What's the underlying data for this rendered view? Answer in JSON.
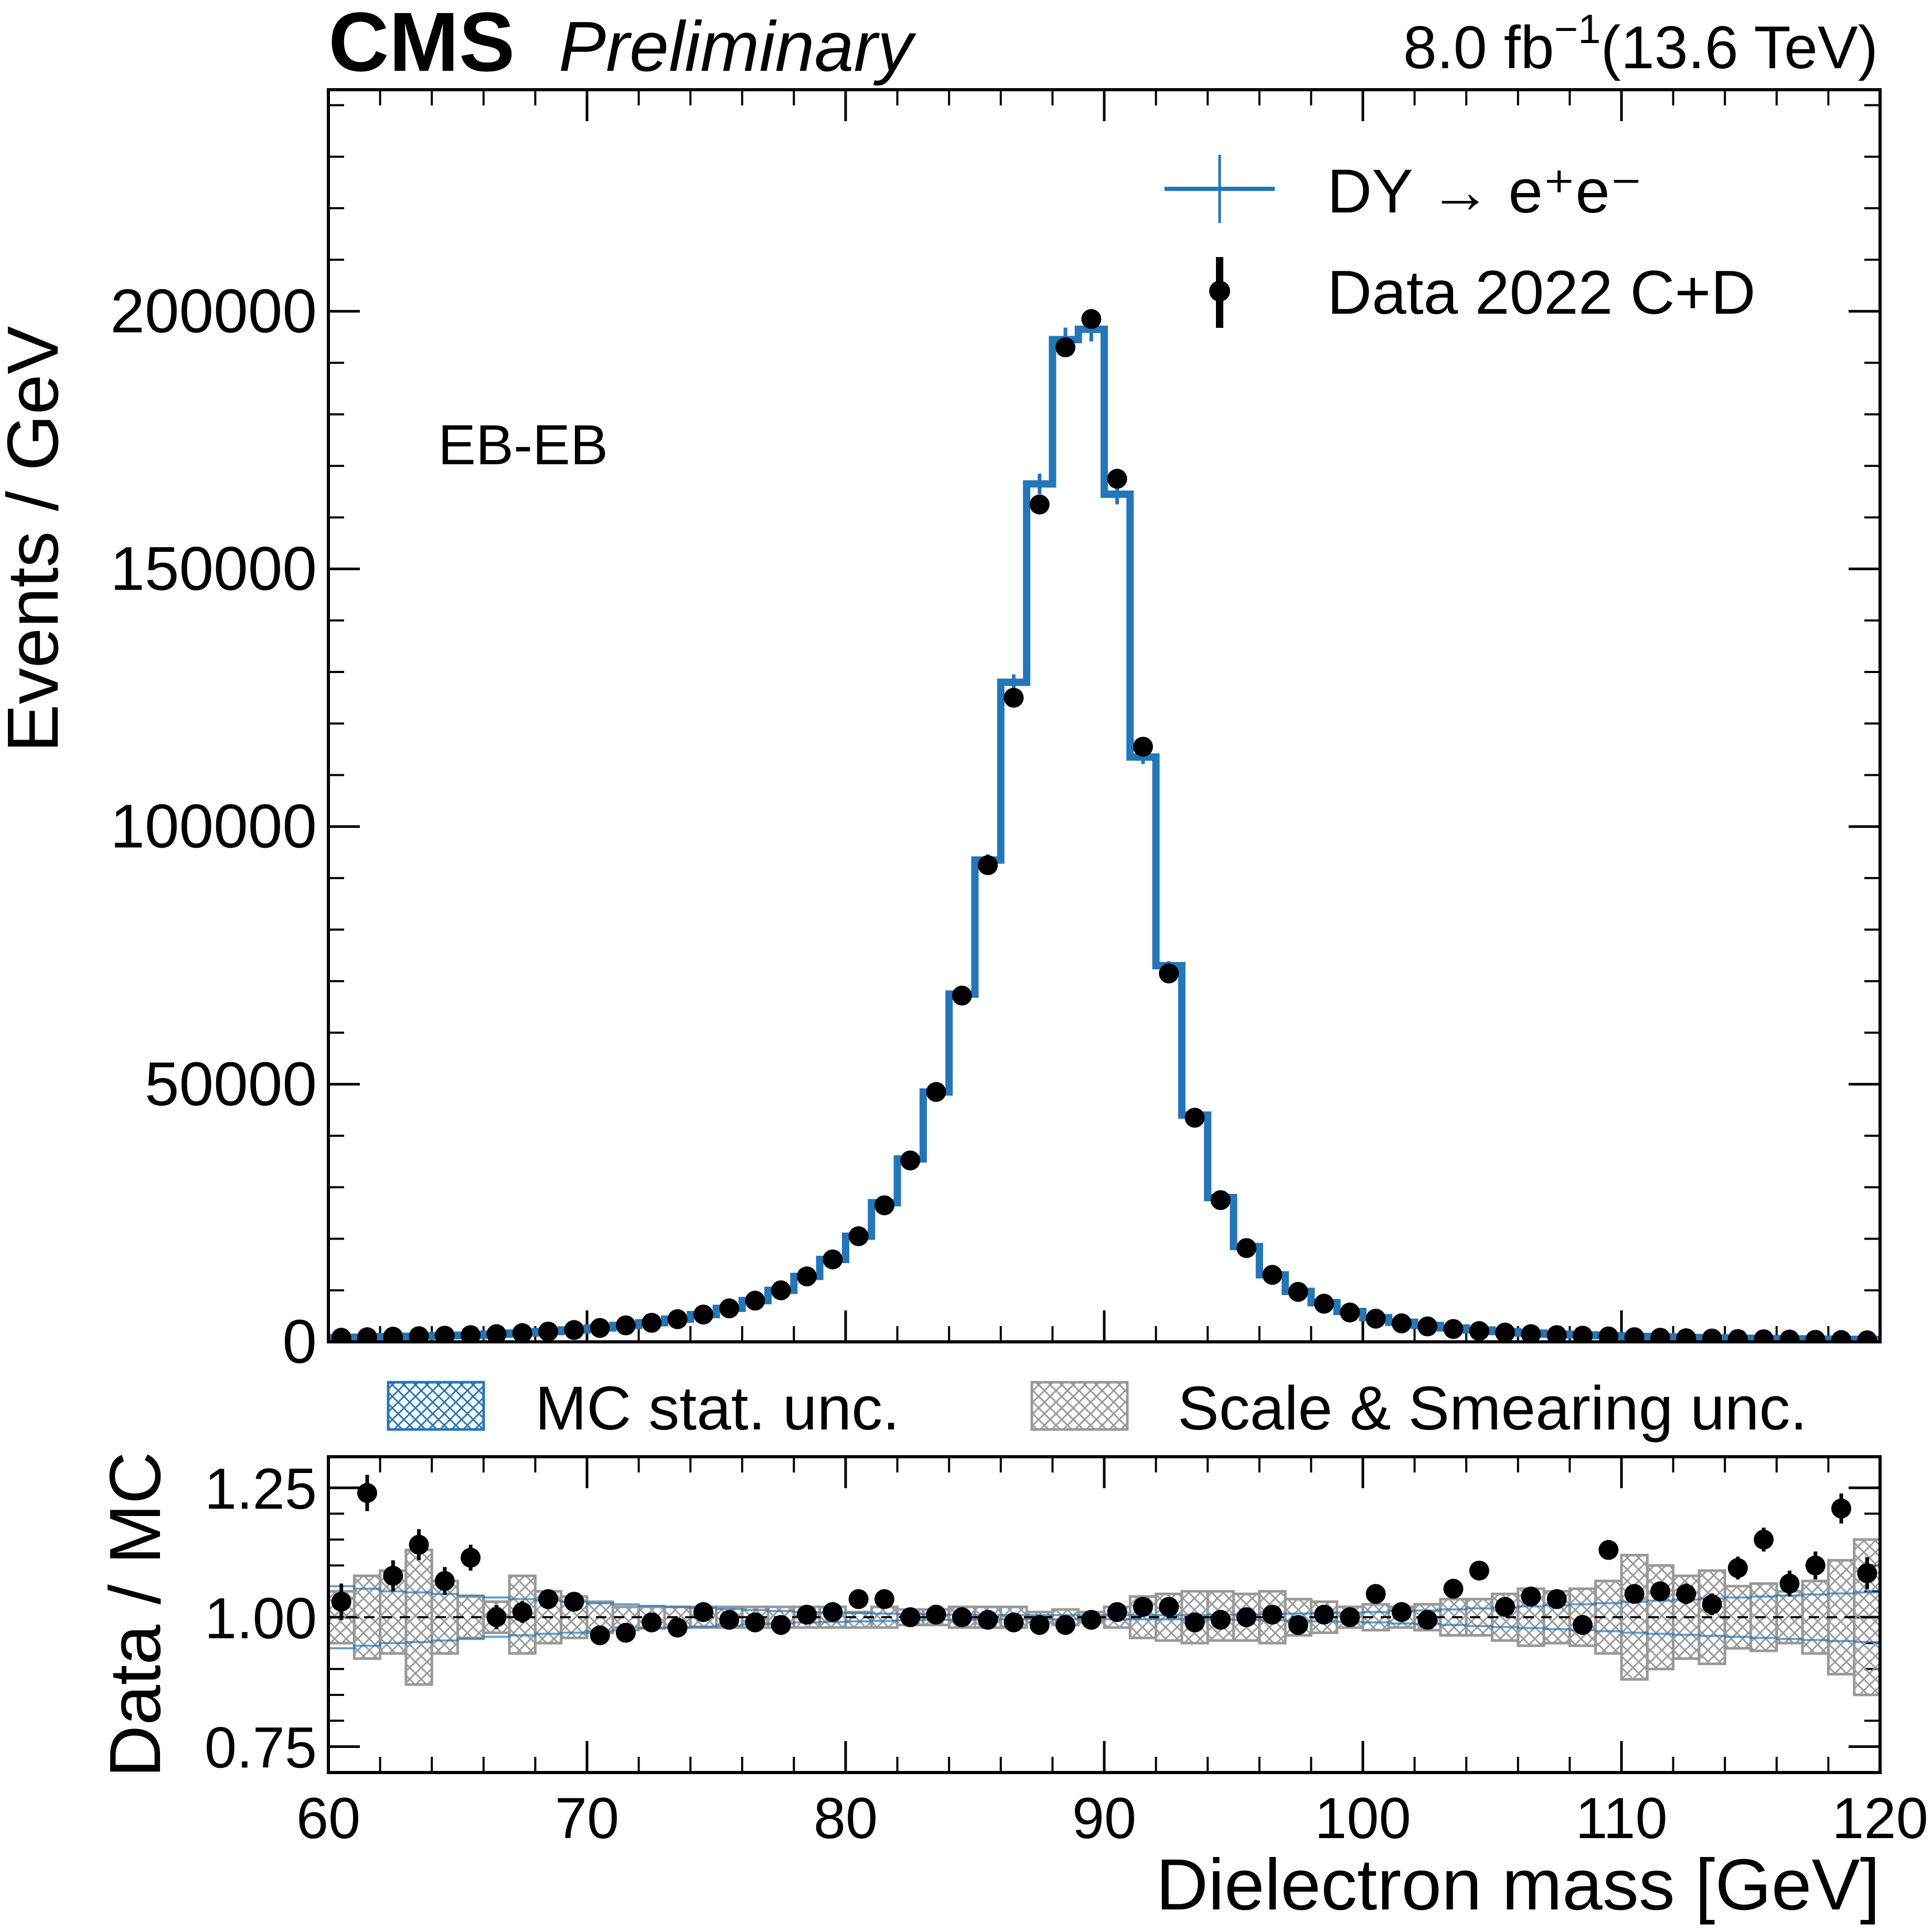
{
  "header": {
    "experiment": "CMS",
    "status": "Preliminary",
    "lumi": "8.0 fb",
    "lumi_exp": "−1",
    "energy": "(13.6 TeV)"
  },
  "colors": {
    "mc": "#2376b7",
    "data": "#000000",
    "syst": "#999999",
    "frame": "#000000"
  },
  "chart_data": [
    {
      "type": "line",
      "panel": "main",
      "region_label": "EB-EB",
      "xlabel": "",
      "ylabel": "Events / GeV",
      "xlim": [
        60,
        120
      ],
      "ylim": [
        0,
        243000
      ],
      "yticks": [
        0,
        50000,
        100000,
        150000,
        200000
      ],
      "ytick_labels": [
        "0",
        "50000",
        "100000",
        "150000",
        "200000"
      ],
      "bin_edges": [
        60,
        61,
        62,
        63,
        64,
        65,
        66,
        67,
        68,
        69,
        70,
        71,
        72,
        73,
        74,
        75,
        76,
        77,
        78,
        79,
        80,
        81,
        82,
        83,
        84,
        85,
        86,
        87,
        88,
        89,
        90,
        91,
        92,
        93,
        94,
        95,
        96,
        97,
        98,
        99,
        100,
        101,
        102,
        103,
        104,
        105,
        106,
        107,
        108,
        109,
        110,
        111,
        112,
        113,
        114,
        115,
        116,
        117,
        118,
        119,
        120
      ],
      "legend": [
        {
          "label": "DY → e⁺e⁻",
          "style": "step"
        },
        {
          "label": "Data 2022 C+D",
          "style": "errorbar"
        }
      ],
      "series": [
        {
          "name": "DY → e⁺e⁻",
          "style": "step",
          "values": [
            800,
            900,
            1000,
            1100,
            1200,
            1300,
            1500,
            1700,
            2000,
            2300,
            2700,
            3200,
            3700,
            4400,
            5300,
            6500,
            8000,
            10000,
            12700,
            16000,
            20500,
            27000,
            35500,
            48500,
            67500,
            93500,
            128000,
            166500,
            194500,
            196500,
            164500,
            113500,
            73000,
            44000,
            28000,
            18500,
            13000,
            9800,
            7600,
            5900,
            4700,
            3800,
            3200,
            2700,
            2300,
            2000,
            1700,
            1500,
            1350,
            1200,
            1050,
            950,
            850,
            780,
            700,
            640,
            580,
            540,
            500,
            470
          ]
        },
        {
          "name": "Data 2022 C+D",
          "style": "errorbar",
          "values": [
            800,
            900,
            1000,
            1100,
            1200,
            1300,
            1500,
            1700,
            2000,
            2300,
            2700,
            3200,
            3700,
            4400,
            5300,
            6500,
            8000,
            10000,
            12700,
            16000,
            20500,
            26500,
            35200,
            48500,
            67200,
            92500,
            125000,
            162500,
            193000,
            198500,
            167500,
            115500,
            71500,
            43500,
            27500,
            18200,
            13000,
            9700,
            7400,
            5700,
            4500,
            3600,
            3000,
            2500,
            2100,
            1800,
            1500,
            1300,
            1200,
            1050,
            900,
            800,
            700,
            650,
            550,
            500,
            450,
            400,
            350,
            300
          ],
          "errors": [
            40,
            40,
            40,
            40,
            40,
            40,
            40,
            40,
            40,
            40,
            40,
            40,
            40,
            40,
            40,
            40,
            40,
            40,
            40,
            40,
            40,
            40,
            40,
            40,
            40,
            40,
            40,
            40,
            40,
            40,
            40,
            40,
            40,
            40,
            40,
            40,
            40,
            40,
            40,
            40,
            40,
            40,
            40,
            40,
            40,
            40,
            40,
            40,
            40,
            40,
            40,
            40,
            40,
            40,
            40,
            40,
            40,
            40,
            40,
            40
          ]
        }
      ]
    },
    {
      "type": "scatter",
      "panel": "ratio",
      "xlabel": "Dielectron mass [GeV]",
      "ylabel": "Data / MC",
      "xlim": [
        60,
        120
      ],
      "ylim": [
        0.7,
        1.31
      ],
      "yticks": [
        0.75,
        1.0,
        1.25
      ],
      "ytick_labels": [
        "0.75",
        "1.00",
        "1.25"
      ],
      "xticks": [
        60,
        70,
        80,
        90,
        100,
        110,
        120
      ],
      "xtick_labels": [
        "60",
        "70",
        "80",
        "90",
        "100",
        "110",
        "120"
      ],
      "legend": [
        {
          "label": "MC stat. unc.",
          "style": "hatch-blue"
        },
        {
          "label": "Scale & Smearing unc.",
          "style": "hatch-grey"
        }
      ],
      "reference_line": 1.0,
      "x": [
        60.5,
        61.5,
        62.5,
        63.5,
        64.5,
        65.5,
        66.5,
        67.5,
        68.5,
        69.5,
        70.5,
        71.5,
        72.5,
        73.5,
        74.5,
        75.5,
        76.5,
        77.5,
        78.5,
        79.5,
        80.5,
        81.5,
        82.5,
        83.5,
        84.5,
        85.5,
        86.5,
        87.5,
        88.5,
        89.5,
        90.5,
        91.5,
        92.5,
        93.5,
        94.5,
        95.5,
        96.5,
        97.5,
        98.5,
        99.5,
        100.5,
        101.5,
        102.5,
        103.5,
        104.5,
        105.5,
        106.5,
        107.5,
        108.5,
        109.5,
        110.5,
        111.5,
        112.5,
        113.5,
        114.5,
        115.5,
        116.5,
        117.5,
        118.5,
        119.5
      ],
      "series": [
        {
          "name": "Data / MC",
          "style": "errorbar",
          "values": [
            1.03,
            1.24,
            1.08,
            1.14,
            1.07,
            1.115,
            1.0,
            1.01,
            1.035,
            1.03,
            0.965,
            0.97,
            0.99,
            0.98,
            1.01,
            0.995,
            0.99,
            0.985,
            1.005,
            1.01,
            1.035,
            1.035,
            1.0,
            1.005,
            1.0,
            0.995,
            0.99,
            0.985,
            0.985,
            0.995,
            1.01,
            1.02,
            1.02,
            0.99,
            0.995,
            1.0,
            1.005,
            0.985,
            1.005,
            1.0,
            1.045,
            1.01,
            0.995,
            1.055,
            1.09,
            1.02,
            1.04,
            1.035,
            0.985,
            1.13,
            1.045,
            1.05,
            1.045,
            1.025,
            1.095,
            1.15,
            1.065,
            1.1,
            1.21,
            1.085
          ],
          "errors": [
            0.035,
            0.035,
            0.03,
            0.03,
            0.027,
            0.025,
            0.023,
            0.021,
            0.019,
            0.017,
            0.015,
            0.014,
            0.012,
            0.011,
            0.01,
            0.009,
            0.008,
            0.007,
            0.007,
            0.006,
            0.006,
            0.006,
            0.006,
            0.006,
            0.006,
            0.006,
            0.006,
            0.006,
            0.006,
            0.006,
            0.006,
            0.006,
            0.006,
            0.006,
            0.006,
            0.006,
            0.006,
            0.006,
            0.006,
            0.006,
            0.007,
            0.008,
            0.009,
            0.01,
            0.011,
            0.012,
            0.013,
            0.014,
            0.015,
            0.017,
            0.018,
            0.019,
            0.02,
            0.021,
            0.022,
            0.023,
            0.025,
            0.027,
            0.029,
            0.031
          ]
        },
        {
          "name": "MC stat. unc.",
          "style": "band",
          "half_width": [
            0.06,
            0.055,
            0.05,
            0.048,
            0.045,
            0.042,
            0.038,
            0.035,
            0.032,
            0.03,
            0.027,
            0.025,
            0.022,
            0.02,
            0.018,
            0.016,
            0.014,
            0.012,
            0.01,
            0.009,
            0.008,
            0.007,
            0.006,
            0.005,
            0.005,
            0.004,
            0.004,
            0.004,
            0.004,
            0.004,
            0.004,
            0.004,
            0.004,
            0.004,
            0.005,
            0.005,
            0.006,
            0.007,
            0.008,
            0.009,
            0.01,
            0.012,
            0.013,
            0.015,
            0.017,
            0.019,
            0.021,
            0.023,
            0.025,
            0.027,
            0.03,
            0.032,
            0.034,
            0.036,
            0.038,
            0.04,
            0.042,
            0.044,
            0.046,
            0.048
          ]
        },
        {
          "name": "Scale & Smearing unc.",
          "style": "band",
          "up": [
            1.05,
            1.08,
            1.09,
            1.13,
            1.07,
            1.04,
            1.03,
            1.08,
            1.05,
            1.04,
            1.03,
            1.02,
            1.02,
            1.02,
            1.02,
            1.02,
            1.02,
            1.02,
            1.02,
            1.02,
            1.01,
            1.02,
            1.015,
            1.015,
            1.02,
            1.02,
            1.02,
            1.01,
            1.015,
            1.01,
            1.02,
            1.04,
            1.045,
            1.05,
            1.05,
            1.045,
            1.05,
            1.035,
            1.03,
            1.02,
            1.025,
            1.02,
            1.025,
            1.035,
            1.035,
            1.045,
            1.055,
            1.05,
            1.055,
            1.07,
            1.12,
            1.1,
            1.08,
            1.09,
            1.06,
            1.065,
            1.05,
            1.07,
            1.11,
            1.15
          ],
          "down": [
            0.95,
            0.92,
            0.93,
            0.87,
            0.93,
            0.96,
            0.97,
            0.93,
            0.95,
            0.96,
            0.97,
            0.98,
            0.98,
            0.98,
            0.98,
            0.98,
            0.98,
            0.98,
            0.98,
            0.98,
            0.98,
            0.98,
            0.985,
            0.985,
            0.98,
            0.98,
            0.98,
            0.99,
            0.985,
            0.99,
            0.98,
            0.96,
            0.955,
            0.95,
            0.955,
            0.955,
            0.95,
            0.965,
            0.97,
            0.98,
            0.975,
            0.98,
            0.975,
            0.965,
            0.965,
            0.955,
            0.945,
            0.95,
            0.945,
            0.93,
            0.88,
            0.9,
            0.92,
            0.91,
            0.94,
            0.935,
            0.95,
            0.93,
            0.89,
            0.85
          ]
        }
      ]
    }
  ]
}
